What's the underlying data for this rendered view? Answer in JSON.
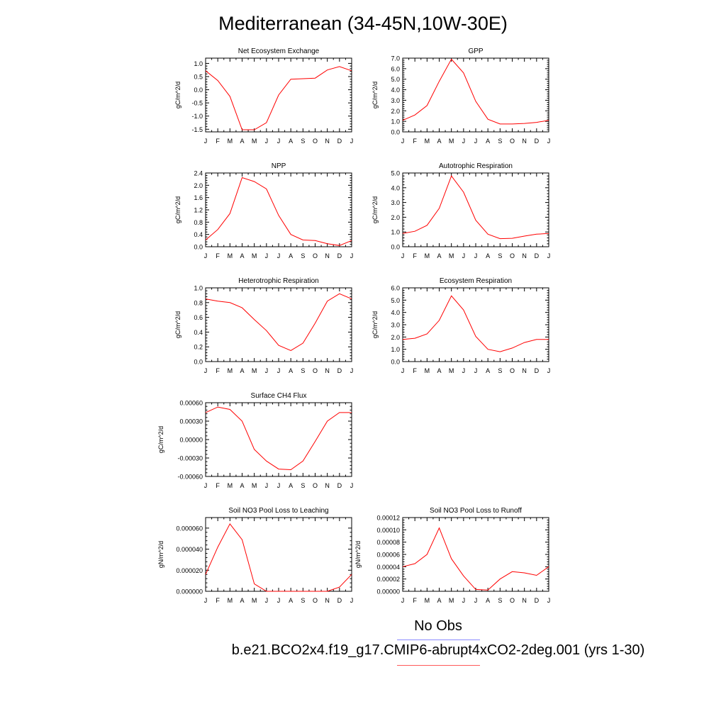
{
  "title": "Mediterranean (34-45N,10W-30E)",
  "legend": {
    "obs_label": "No Obs",
    "obs_color": "#8c8cff",
    "model_label": "b.e21.BCO2x4.f19_g17.CMIP6-abrupt4xCO2-2deg.001 (yrs 1-30)",
    "model_color": "#ff5a5a"
  },
  "chart_data": [
    {
      "type": "line",
      "title": "Net Ecosystem Exchange",
      "ylabel": "gC/m^2/d",
      "x": [
        "J",
        "F",
        "M",
        "A",
        "M",
        "J",
        "J",
        "A",
        "S",
        "O",
        "N",
        "D",
        "J"
      ],
      "ylim": [
        -1.6,
        1.2
      ],
      "yticks": [
        -1.5,
        -1.0,
        -0.5,
        0.0,
        0.5,
        1.0
      ],
      "ytick_labels": [
        "-1.5",
        "-1.0",
        "-0.5",
        "0.0",
        "0.5",
        "1.0"
      ],
      "series": [
        {
          "color": "#ff0000",
          "values": [
            0.72,
            0.35,
            -0.25,
            -1.52,
            -1.52,
            -1.25,
            -0.2,
            0.4,
            0.42,
            0.44,
            0.75,
            0.88,
            0.72
          ]
        }
      ]
    },
    {
      "type": "line",
      "title": "GPP",
      "ylabel": "gC/m^2/d",
      "x": [
        "J",
        "F",
        "M",
        "A",
        "M",
        "J",
        "J",
        "A",
        "S",
        "O",
        "N",
        "D",
        "J"
      ],
      "ylim": [
        0,
        7
      ],
      "yticks": [
        0,
        1,
        2,
        3,
        4,
        5,
        6,
        7
      ],
      "ytick_labels": [
        "0.0",
        "1.0",
        "2.0",
        "3.0",
        "4.0",
        "5.0",
        "6.0",
        "7.0"
      ],
      "series": [
        {
          "color": "#ff0000",
          "values": [
            1.1,
            1.6,
            2.5,
            4.8,
            6.9,
            5.6,
            2.9,
            1.2,
            0.75,
            0.75,
            0.8,
            0.9,
            1.1
          ]
        }
      ]
    },
    {
      "type": "line",
      "title": "NPP",
      "ylabel": "gC/m^2/d",
      "x": [
        "J",
        "F",
        "M",
        "A",
        "M",
        "J",
        "J",
        "A",
        "S",
        "O",
        "N",
        "D",
        "J"
      ],
      "ylim": [
        0,
        2.4
      ],
      "yticks": [
        0,
        0.4,
        0.8,
        1.2,
        1.6,
        2.0,
        2.4
      ],
      "ytick_labels": [
        "0.0",
        "0.4",
        "0.8",
        "1.2",
        "1.6",
        "2.0",
        "2.4"
      ],
      "series": [
        {
          "color": "#ff0000",
          "values": [
            0.22,
            0.56,
            1.08,
            2.25,
            2.12,
            1.88,
            1.02,
            0.4,
            0.22,
            0.2,
            0.1,
            0.04,
            0.2
          ]
        }
      ]
    },
    {
      "type": "line",
      "title": "Autotrophic Respiration",
      "ylabel": "gC/m^2/d",
      "x": [
        "J",
        "F",
        "M",
        "A",
        "M",
        "J",
        "J",
        "A",
        "S",
        "O",
        "N",
        "D",
        "J"
      ],
      "ylim": [
        0,
        5
      ],
      "yticks": [
        0,
        1,
        2,
        3,
        4,
        5
      ],
      "ytick_labels": [
        "0.0",
        "1.0",
        "2.0",
        "3.0",
        "4.0",
        "5.0"
      ],
      "series": [
        {
          "color": "#ff0000",
          "values": [
            0.9,
            1.05,
            1.45,
            2.6,
            4.8,
            3.7,
            1.8,
            0.85,
            0.55,
            0.57,
            0.72,
            0.85,
            0.9
          ]
        }
      ]
    },
    {
      "type": "line",
      "title": "Heterotrophic Respiration",
      "ylabel": "gC/m^2/d",
      "x": [
        "J",
        "F",
        "M",
        "A",
        "M",
        "J",
        "J",
        "A",
        "S",
        "O",
        "N",
        "D",
        "J"
      ],
      "ylim": [
        0,
        1.0
      ],
      "yticks": [
        0,
        0.2,
        0.4,
        0.6,
        0.8,
        1.0
      ],
      "ytick_labels": [
        "0.0",
        "0.2",
        "0.4",
        "0.6",
        "0.8",
        "1.0"
      ],
      "series": [
        {
          "color": "#ff0000",
          "values": [
            0.85,
            0.82,
            0.8,
            0.73,
            0.57,
            0.42,
            0.22,
            0.15,
            0.25,
            0.52,
            0.82,
            0.92,
            0.85
          ]
        }
      ]
    },
    {
      "type": "line",
      "title": "Ecosystem Respiration",
      "ylabel": "gC/m^2/d",
      "x": [
        "J",
        "F",
        "M",
        "A",
        "M",
        "J",
        "J",
        "A",
        "S",
        "O",
        "N",
        "D",
        "J"
      ],
      "ylim": [
        0,
        6
      ],
      "yticks": [
        0,
        1,
        2,
        3,
        4,
        5,
        6
      ],
      "ytick_labels": [
        "0.0",
        "1.0",
        "2.0",
        "3.0",
        "4.0",
        "5.0",
        "6.0"
      ],
      "series": [
        {
          "color": "#ff0000",
          "values": [
            1.8,
            1.9,
            2.25,
            3.35,
            5.35,
            4.2,
            2.05,
            1.0,
            0.8,
            1.1,
            1.55,
            1.8,
            1.8
          ]
        }
      ]
    },
    {
      "type": "line",
      "title": "Surface CH4 Flux",
      "ylabel": "gC/m^2/d",
      "x": [
        "J",
        "F",
        "M",
        "A",
        "M",
        "J",
        "J",
        "A",
        "S",
        "O",
        "N",
        "D",
        "J"
      ],
      "ylim": [
        -0.0006,
        0.0006
      ],
      "yticks": [
        -0.0006,
        -0.0003,
        0.0,
        0.0003,
        0.0006
      ],
      "ytick_labels": [
        "-0.00060",
        "-0.00030",
        "0.00000",
        "0.00030",
        "0.00060"
      ],
      "series": [
        {
          "color": "#ff0000",
          "values": [
            0.00044,
            0.00053,
            0.00049,
            0.0003,
            -0.00016,
            -0.00035,
            -0.00048,
            -0.00049,
            -0.00035,
            -3e-05,
            0.0003,
            0.00044,
            0.00044
          ]
        }
      ]
    },
    {
      "type": "line",
      "title": "Soil NO3 Pool Loss to Leaching",
      "ylabel": "gN/m^2/d",
      "x": [
        "J",
        "F",
        "M",
        "A",
        "M",
        "J",
        "J",
        "A",
        "S",
        "O",
        "N",
        "D",
        "J"
      ],
      "ylim": [
        0,
        7e-05
      ],
      "yticks": [
        0,
        2e-05,
        4e-05,
        6e-05
      ],
      "ytick_labels": [
        "0.000000",
        "0.000020",
        "0.000040",
        "0.000060"
      ],
      "series": [
        {
          "color": "#ff0000",
          "values": [
            1.6e-05,
            4.2e-05,
            6.4e-05,
            4.9e-05,
            7e-06,
            0.0,
            0.0,
            0.0,
            0.0,
            0.0,
            0.0,
            4e-06,
            1.6e-05
          ]
        }
      ]
    },
    {
      "type": "line",
      "title": "Soil NO3 Pool Loss to Runoff",
      "ylabel": "gN/m^2/d",
      "x": [
        "J",
        "F",
        "M",
        "A",
        "M",
        "J",
        "J",
        "A",
        "S",
        "O",
        "N",
        "D",
        "J"
      ],
      "ylim": [
        0,
        0.00012
      ],
      "yticks": [
        0,
        2e-05,
        4e-05,
        6e-05,
        8e-05,
        0.0001,
        0.00012
      ],
      "ytick_labels": [
        "0.00000",
        "0.00002",
        "0.00004",
        "0.00006",
        "0.00008",
        "0.00010",
        "0.00012"
      ],
      "series": [
        {
          "color": "#ff0000",
          "values": [
            4e-05,
            4.5e-05,
            6e-05,
            0.000103,
            5.3e-05,
            2.5e-05,
            3e-06,
            2e-06,
            2e-05,
            3.2e-05,
            3e-05,
            2.6e-05,
            4e-05
          ]
        }
      ]
    }
  ]
}
